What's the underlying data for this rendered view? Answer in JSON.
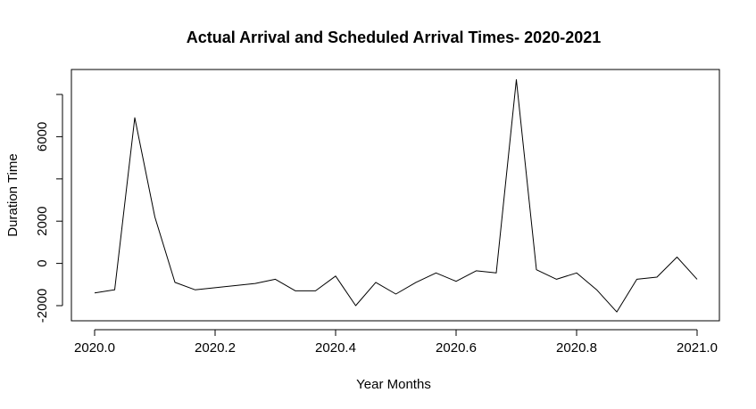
{
  "chart_data": {
    "type": "line",
    "title": "Actual Arrival and Scheduled Arrival Times- 2020-2021",
    "xlabel": "Year Months",
    "ylabel": "Duration Time",
    "xlim": [
      2020.0,
      2021.0
    ],
    "ylim": [
      -2000,
      8000
    ],
    "x_ticks": [
      2020.0,
      2020.2,
      2020.4,
      2020.6,
      2020.8,
      2021.0
    ],
    "x_tick_labels": [
      "2020.0",
      "2020.2",
      "2020.4",
      "2020.6",
      "2020.8",
      "2021.0"
    ],
    "y_ticks": [
      -2000,
      0,
      2000,
      6000
    ],
    "y_tick_labels": [
      "-2000",
      "0",
      "2000",
      "6000"
    ],
    "grid": false,
    "line_color": "#000000",
    "series": [
      {
        "x": [
          2020.0,
          2020.0333,
          2020.0667,
          2020.1,
          2020.1333,
          2020.1667,
          2020.2,
          2020.2333,
          2020.2667,
          2020.3,
          2020.3333,
          2020.3667,
          2020.4,
          2020.4333,
          2020.4667,
          2020.5,
          2020.5333,
          2020.5667,
          2020.6,
          2020.6333,
          2020.6667,
          2020.7,
          2020.7333,
          2020.7667,
          2020.8,
          2020.8333,
          2020.8667,
          2020.9,
          2020.9333,
          2020.9667,
          2021.0
        ],
        "y": [
          -1400,
          -1250,
          6900,
          2200,
          -900,
          -1250,
          -1150,
          -1050,
          -950,
          -750,
          -1300,
          -1300,
          -600,
          -2000,
          -900,
          -1450,
          -900,
          -450,
          -850,
          -350,
          -450,
          8700,
          -300,
          -750,
          -450,
          -1250,
          -2300,
          -750,
          -650,
          300,
          -750
        ]
      }
    ]
  }
}
